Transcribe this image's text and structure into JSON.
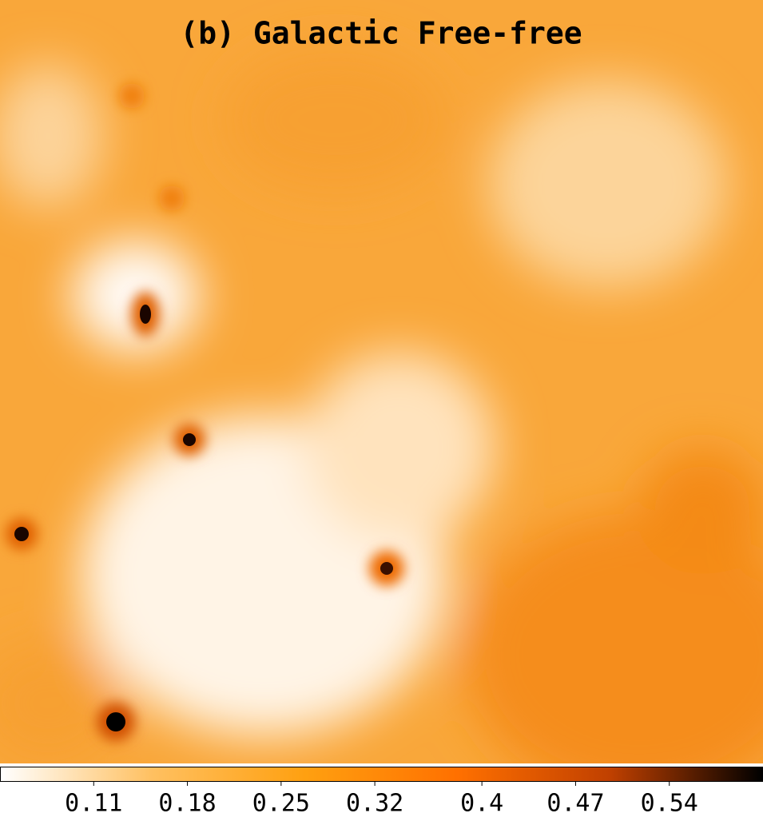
{
  "chart_data": {
    "type": "heatmap",
    "title": "(b) Galactic Free-free",
    "colormap": [
      "#ffffff",
      "#ffc060",
      "#ffa010",
      "#ff7000",
      "#c04000",
      "#000000"
    ],
    "clim": [
      0.04,
      0.61
    ],
    "cticks": [
      0.11,
      0.18,
      0.25,
      0.32,
      0.4,
      0.47,
      0.54
    ]
  }
}
